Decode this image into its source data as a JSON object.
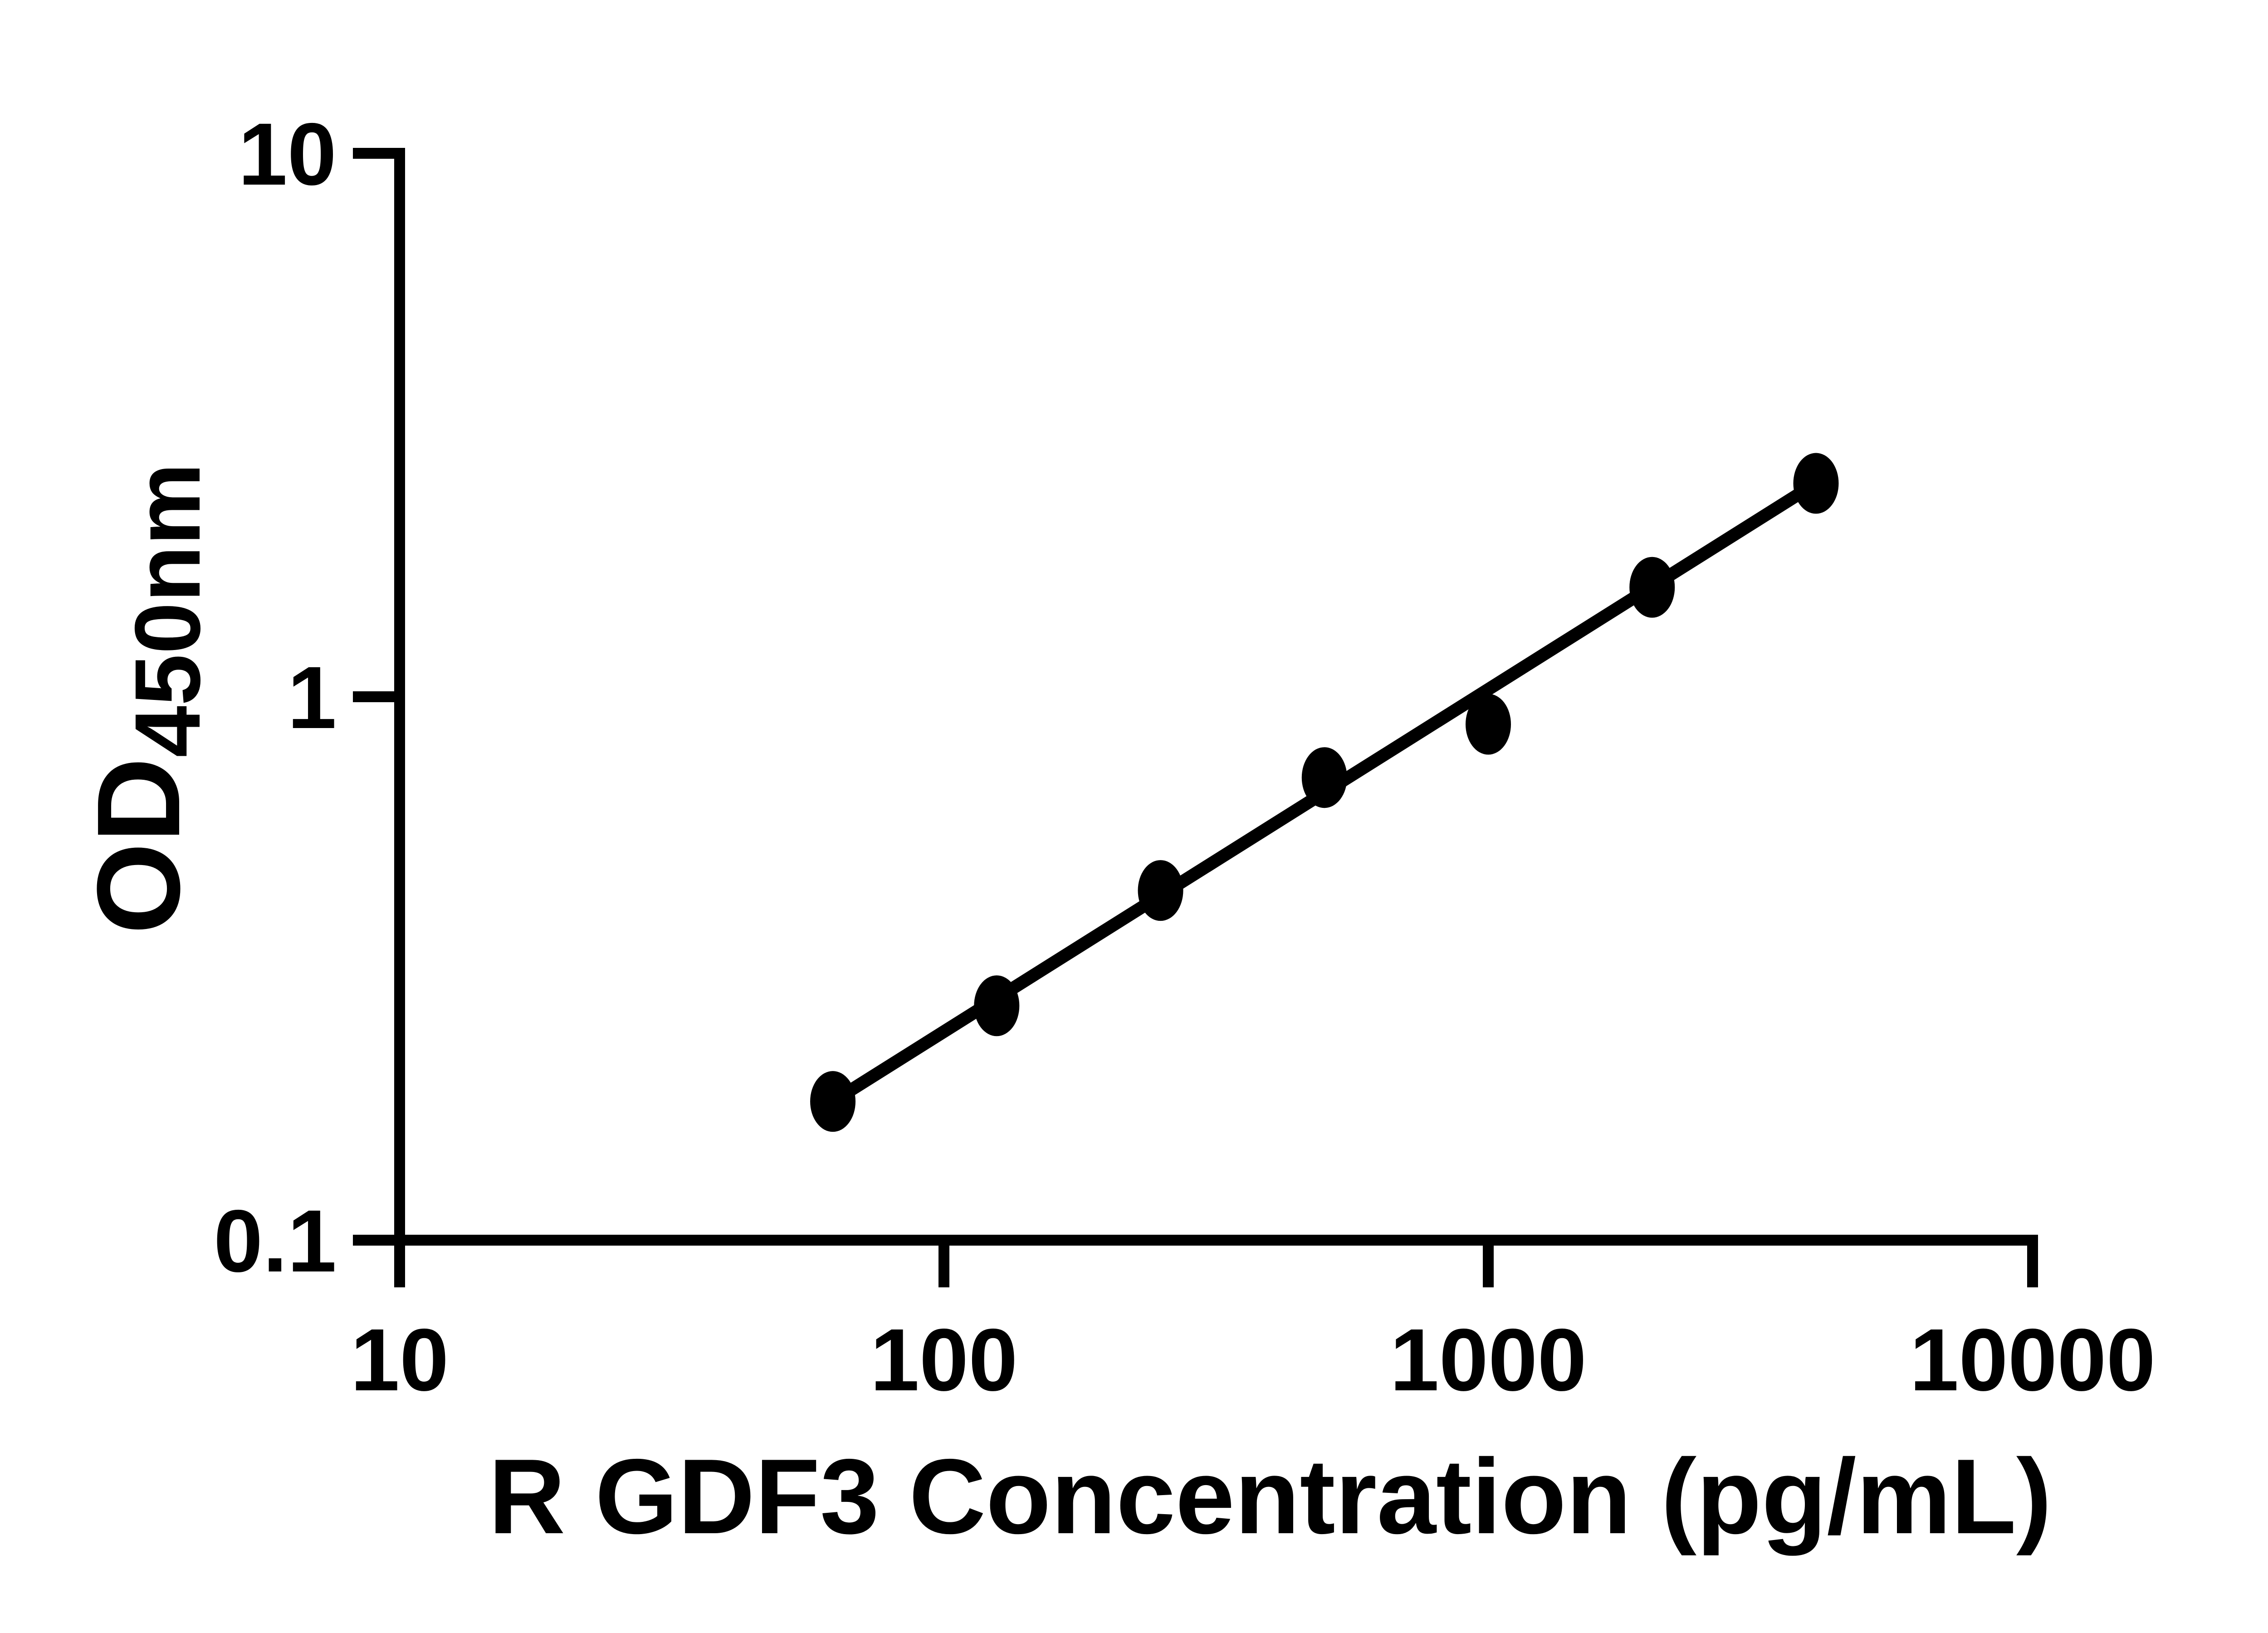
{
  "figure": {
    "background_color": "#ffffff",
    "ink_color": "#000000"
  },
  "chart_data": {
    "type": "scatter",
    "title": "",
    "xlabel": "R GDF3 Concentration (pg/mL)",
    "ylabel_main": "OD",
    "ylabel_subscript": "450nm",
    "x_scale": "log10",
    "y_scale": "log10",
    "xlim": [
      10,
      10000
    ],
    "ylim": [
      0.1,
      10
    ],
    "x_tick_labels": [
      "10",
      "100",
      "1000",
      "10000"
    ],
    "x_tick_values": [
      10,
      100,
      1000,
      10000
    ],
    "y_tick_labels": [
      "10",
      "1",
      "0.1"
    ],
    "y_tick_values": [
      10,
      1,
      0.1
    ],
    "grid": false,
    "legend_position": "none",
    "marker": {
      "shape": "ellipse",
      "color": "#000000"
    },
    "line_color": "#000000",
    "points": [
      {
        "concentration_pg_ml": 62.5,
        "od450": 0.18
      },
      {
        "concentration_pg_ml": 125,
        "od450": 0.27
      },
      {
        "concentration_pg_ml": 250,
        "od450": 0.44
      },
      {
        "concentration_pg_ml": 500,
        "od450": 0.71
      },
      {
        "concentration_pg_ml": 1000,
        "od450": 0.89
      },
      {
        "concentration_pg_ml": 2000,
        "od450": 1.59
      },
      {
        "concentration_pg_ml": 4000,
        "od450": 2.47
      }
    ],
    "trend_line": {
      "from": {
        "concentration_pg_ml": 62.5,
        "od450": 0.18
      },
      "to": {
        "concentration_pg_ml": 4000,
        "od450": 2.47
      }
    }
  }
}
